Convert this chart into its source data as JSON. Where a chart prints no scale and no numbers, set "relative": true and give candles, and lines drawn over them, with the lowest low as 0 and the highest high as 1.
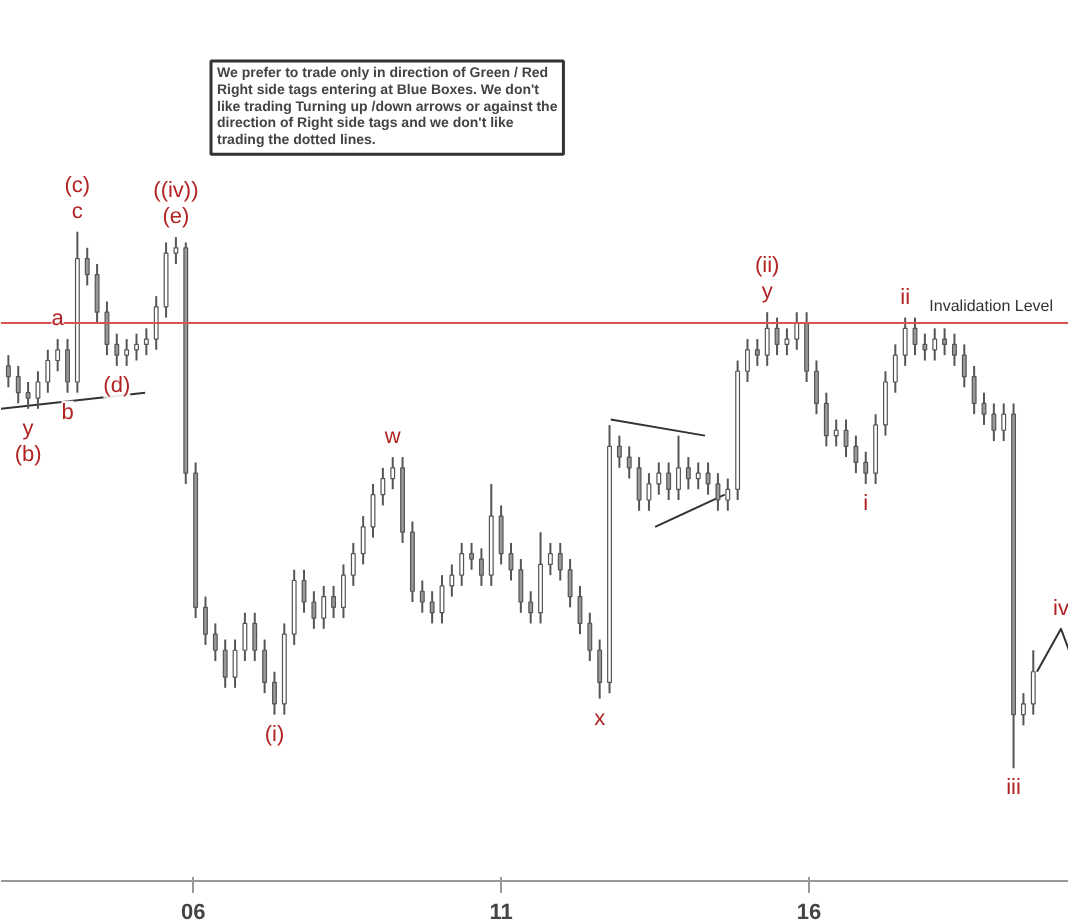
{
  "chart_data": {
    "type": "candlestick",
    "relative": true,
    "color": "#555555",
    "x": [
      3.0,
      3.16,
      3.32,
      3.48,
      3.64,
      3.8,
      3.96,
      4.12,
      4.28,
      4.44,
      4.6,
      4.76,
      4.92,
      5.08,
      5.24,
      5.4,
      5.56,
      5.72,
      5.88,
      6.04,
      6.2,
      6.36,
      6.52,
      6.68,
      6.84,
      7.0,
      7.16,
      7.32,
      7.48,
      7.64,
      7.8,
      7.96,
      8.12,
      8.28,
      8.44,
      8.6,
      8.76,
      8.92,
      9.08,
      9.24,
      9.4,
      9.56,
      9.72,
      9.88,
      10.04,
      10.2,
      10.36,
      10.52,
      10.68,
      10.84,
      11.0,
      11.16,
      11.32,
      11.48,
      11.64,
      11.8,
      11.96,
      12.12,
      12.28,
      12.44,
      12.6,
      12.76,
      12.92,
      13.08,
      13.24,
      13.4,
      13.56,
      13.72,
      13.88,
      14.04,
      14.2,
      14.36,
      14.52,
      14.68,
      14.84,
      15.0,
      15.16,
      15.32,
      15.48,
      15.64,
      15.8,
      15.96,
      16.12,
      16.28,
      16.44,
      16.6,
      16.76,
      16.92,
      17.08,
      17.24,
      17.4,
      17.56,
      17.72,
      17.88,
      18.04,
      18.2,
      18.36,
      18.52,
      18.68,
      18.84,
      19.0,
      19.16,
      19.32,
      19.48,
      19.64
    ],
    "ohlc": [
      [
        0.75,
        0.77,
        0.71,
        0.73
      ],
      [
        0.73,
        0.75,
        0.68,
        0.7
      ],
      [
        0.7,
        0.72,
        0.67,
        0.69
      ],
      [
        0.69,
        0.74,
        0.67,
        0.72
      ],
      [
        0.72,
        0.78,
        0.7,
        0.76
      ],
      [
        0.76,
        0.8,
        0.74,
        0.78
      ],
      [
        0.78,
        0.8,
        0.7,
        0.72
      ],
      [
        0.72,
        1.0,
        0.7,
        0.95
      ],
      [
        0.95,
        0.97,
        0.9,
        0.92
      ],
      [
        0.92,
        0.94,
        0.83,
        0.85
      ],
      [
        0.85,
        0.87,
        0.77,
        0.79
      ],
      [
        0.79,
        0.81,
        0.75,
        0.77
      ],
      [
        0.77,
        0.8,
        0.75,
        0.78
      ],
      [
        0.78,
        0.81,
        0.76,
        0.79
      ],
      [
        0.79,
        0.82,
        0.77,
        0.8
      ],
      [
        0.8,
        0.88,
        0.78,
        0.86
      ],
      [
        0.86,
        0.98,
        0.84,
        0.96
      ],
      [
        0.96,
        0.99,
        0.94,
        0.97
      ],
      [
        0.97,
        0.98,
        0.53,
        0.55
      ],
      [
        0.55,
        0.57,
        0.28,
        0.3
      ],
      [
        0.3,
        0.32,
        0.23,
        0.25
      ],
      [
        0.25,
        0.27,
        0.2,
        0.22
      ],
      [
        0.22,
        0.24,
        0.15,
        0.17
      ],
      [
        0.17,
        0.24,
        0.15,
        0.22
      ],
      [
        0.22,
        0.29,
        0.2,
        0.27
      ],
      [
        0.27,
        0.29,
        0.2,
        0.22
      ],
      [
        0.22,
        0.24,
        0.14,
        0.16
      ],
      [
        0.16,
        0.18,
        0.1,
        0.12
      ],
      [
        0.12,
        0.27,
        0.1,
        0.25
      ],
      [
        0.25,
        0.37,
        0.23,
        0.35
      ],
      [
        0.35,
        0.37,
        0.29,
        0.31
      ],
      [
        0.31,
        0.33,
        0.26,
        0.28
      ],
      [
        0.28,
        0.34,
        0.26,
        0.32
      ],
      [
        0.32,
        0.34,
        0.28,
        0.3
      ],
      [
        0.3,
        0.38,
        0.28,
        0.36
      ],
      [
        0.36,
        0.42,
        0.34,
        0.4
      ],
      [
        0.4,
        0.47,
        0.38,
        0.45
      ],
      [
        0.45,
        0.53,
        0.43,
        0.51
      ],
      [
        0.51,
        0.56,
        0.49,
        0.54
      ],
      [
        0.54,
        0.58,
        0.52,
        0.56
      ],
      [
        0.56,
        0.58,
        0.42,
        0.44
      ],
      [
        0.44,
        0.46,
        0.31,
        0.33
      ],
      [
        0.33,
        0.35,
        0.29,
        0.31
      ],
      [
        0.31,
        0.33,
        0.27,
        0.29
      ],
      [
        0.29,
        0.36,
        0.27,
        0.34
      ],
      [
        0.34,
        0.38,
        0.32,
        0.36
      ],
      [
        0.36,
        0.42,
        0.34,
        0.4
      ],
      [
        0.4,
        0.42,
        0.37,
        0.39
      ],
      [
        0.39,
        0.41,
        0.34,
        0.36
      ],
      [
        0.36,
        0.53,
        0.34,
        0.47
      ],
      [
        0.47,
        0.49,
        0.38,
        0.4
      ],
      [
        0.4,
        0.42,
        0.35,
        0.37
      ],
      [
        0.37,
        0.39,
        0.29,
        0.31
      ],
      [
        0.31,
        0.33,
        0.27,
        0.29
      ],
      [
        0.29,
        0.44,
        0.27,
        0.38
      ],
      [
        0.38,
        0.42,
        0.36,
        0.4
      ],
      [
        0.4,
        0.42,
        0.35,
        0.37
      ],
      [
        0.37,
        0.39,
        0.3,
        0.32
      ],
      [
        0.32,
        0.34,
        0.25,
        0.27
      ],
      [
        0.27,
        0.29,
        0.2,
        0.22
      ],
      [
        0.22,
        0.24,
        0.13,
        0.16
      ],
      [
        0.16,
        0.64,
        0.14,
        0.6
      ],
      [
        0.6,
        0.62,
        0.56,
        0.58
      ],
      [
        0.58,
        0.6,
        0.54,
        0.56
      ],
      [
        0.56,
        0.58,
        0.48,
        0.5
      ],
      [
        0.5,
        0.55,
        0.48,
        0.53
      ],
      [
        0.53,
        0.57,
        0.51,
        0.55
      ],
      [
        0.55,
        0.57,
        0.5,
        0.52
      ],
      [
        0.52,
        0.62,
        0.5,
        0.56
      ],
      [
        0.56,
        0.58,
        0.52,
        0.54
      ],
      [
        0.54,
        0.57,
        0.52,
        0.55
      ],
      [
        0.55,
        0.57,
        0.51,
        0.53
      ],
      [
        0.53,
        0.55,
        0.48,
        0.5
      ],
      [
        0.5,
        0.54,
        0.48,
        0.52
      ],
      [
        0.52,
        0.76,
        0.5,
        0.74
      ],
      [
        0.74,
        0.8,
        0.72,
        0.78
      ],
      [
        0.78,
        0.8,
        0.75,
        0.77
      ],
      [
        0.77,
        0.85,
        0.75,
        0.82
      ],
      [
        0.82,
        0.84,
        0.77,
        0.79
      ],
      [
        0.79,
        0.82,
        0.77,
        0.8
      ],
      [
        0.8,
        0.85,
        0.78,
        0.83
      ],
      [
        0.83,
        0.85,
        0.72,
        0.74
      ],
      [
        0.74,
        0.76,
        0.66,
        0.68
      ],
      [
        0.68,
        0.7,
        0.6,
        0.62
      ],
      [
        0.62,
        0.65,
        0.6,
        0.63
      ],
      [
        0.63,
        0.65,
        0.58,
        0.6
      ],
      [
        0.6,
        0.62,
        0.55,
        0.57
      ],
      [
        0.57,
        0.59,
        0.53,
        0.55
      ],
      [
        0.55,
        0.66,
        0.53,
        0.64
      ],
      [
        0.64,
        0.74,
        0.62,
        0.72
      ],
      [
        0.72,
        0.79,
        0.7,
        0.77
      ],
      [
        0.77,
        0.84,
        0.75,
        0.82
      ],
      [
        0.82,
        0.84,
        0.77,
        0.79
      ],
      [
        0.79,
        0.81,
        0.76,
        0.78
      ],
      [
        0.78,
        0.82,
        0.76,
        0.8
      ],
      [
        0.8,
        0.82,
        0.77,
        0.79
      ],
      [
        0.79,
        0.81,
        0.75,
        0.77
      ],
      [
        0.77,
        0.79,
        0.71,
        0.73
      ],
      [
        0.73,
        0.75,
        0.66,
        0.68
      ],
      [
        0.68,
        0.7,
        0.64,
        0.66
      ],
      [
        0.66,
        0.68,
        0.61,
        0.63
      ],
      [
        0.63,
        0.68,
        0.61,
        0.66
      ],
      [
        0.66,
        0.68,
        0.0,
        0.1
      ],
      [
        0.1,
        0.14,
        0.08,
        0.12
      ],
      [
        0.12,
        0.22,
        0.1,
        0.18
      ]
    ],
    "series": [
      {
        "type": "line",
        "color": "#333333",
        "x": [
          2.88,
          5.22
        ],
        "values": [
          0.67,
          0.7
        ]
      },
      {
        "type": "line",
        "color": "#333333",
        "x": [
          12.78,
          14.31
        ],
        "values": [
          0.65,
          0.62
        ]
      },
      {
        "type": "line",
        "color": "#333333",
        "x": [
          13.5,
          14.63
        ],
        "values": [
          0.45,
          0.51
        ]
      },
      {
        "type": "line",
        "color": "#333333",
        "x": [
          19.7,
          20.09,
          20.22
        ],
        "values": [
          0.18,
          0.26,
          0.22
        ]
      }
    ],
    "xlim": [
      2.88,
      20.22
    ],
    "xticks": [
      {
        "value": 6,
        "label": "06"
      },
      {
        "value": 11,
        "label": "11"
      },
      {
        "value": 16,
        "label": "16"
      }
    ],
    "grid": false,
    "ref_lines": [
      {
        "axis": "y",
        "value": 0.83,
        "label": "Invalidation Level",
        "color": "#d9534f"
      }
    ],
    "annotations": [
      "We prefer to trade only in direction of Green / Red Right side tags entering at Blue Boxes. We don't like trading Turning up /down arrows or against the direction of Right side tags and we don't like trading the dotted lines.",
      {
        "text": "y",
        "x": 3.32,
        "y": 0.67
      },
      {
        "text": "(b)",
        "x": 3.32,
        "y": 0.67
      },
      {
        "text": "a",
        "x": 3.8,
        "y": 0.8
      },
      {
        "text": "b",
        "x": 3.96,
        "y": 0.7
      },
      {
        "text": "c",
        "x": 4.12,
        "y": 1.0
      },
      {
        "text": "(c)",
        "x": 4.12,
        "y": 1.0
      },
      {
        "text": "(d)",
        "x": 4.76,
        "y": 0.75
      },
      {
        "text": "(e)",
        "x": 5.72,
        "y": 0.99
      },
      {
        "text": "((iv))",
        "x": 5.72,
        "y": 0.99
      },
      {
        "text": "(i)",
        "x": 7.32,
        "y": 0.1
      },
      {
        "text": "w",
        "x": 9.24,
        "y": 0.58
      },
      {
        "text": "x",
        "x": 12.6,
        "y": 0.13
      },
      {
        "text": "y",
        "x": 15.32,
        "y": 0.85
      },
      {
        "text": "(ii)",
        "x": 15.32,
        "y": 0.85
      },
      {
        "text": "i",
        "x": 16.92,
        "y": 0.53
      },
      {
        "text": "ii",
        "x": 17.56,
        "y": 0.84
      },
      {
        "text": "iii",
        "x": 19.32,
        "y": 0.0
      },
      {
        "text": "iv",
        "x": 20.09,
        "y": 0.26
      }
    ]
  }
}
